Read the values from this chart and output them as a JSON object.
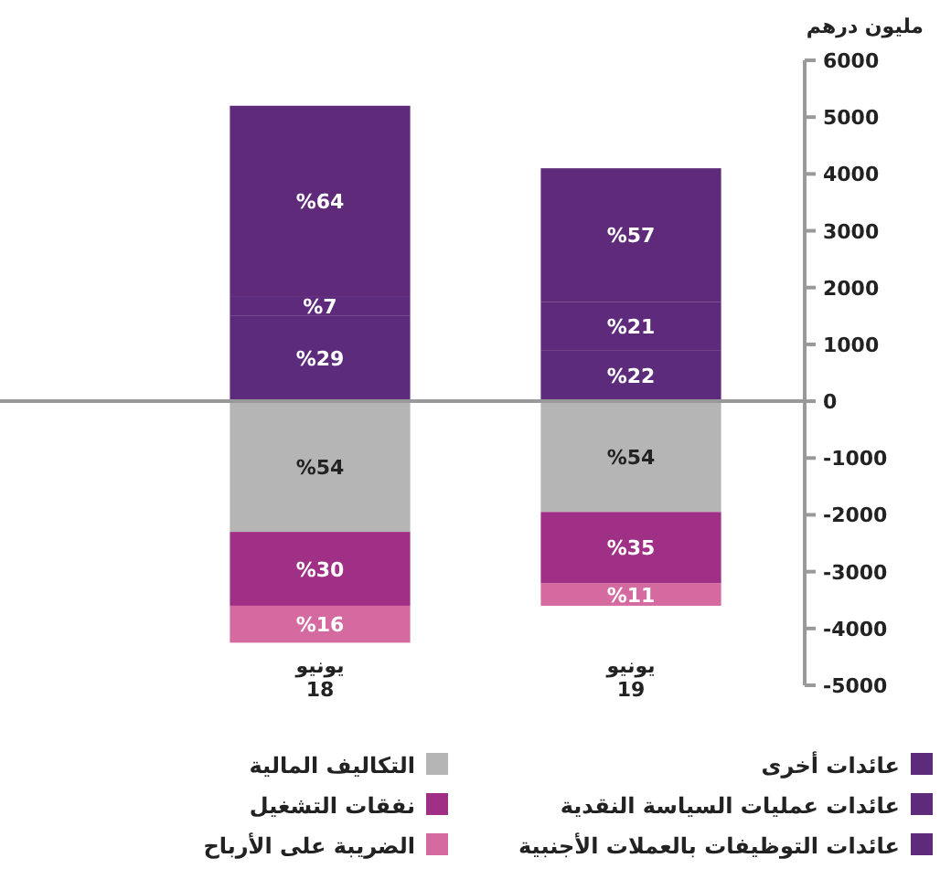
{
  "chart_data": {
    "type": "bar",
    "stacked": true,
    "ylabel": "مليون درهم",
    "categories": [
      "يونيو\n18",
      "يونيو\n19"
    ],
    "series": [
      {
        "name": "عائدات أخرى",
        "color": "#5d2b7b",
        "values": [
          1500,
          900
        ]
      },
      {
        "name": "عائدات عمليات السياسة النقدية",
        "color": "#5e2a7c",
        "values": [
          350,
          850
        ]
      },
      {
        "name": "عائدات التوظيفات بالعملات الأجنبية",
        "color": "#5f2a7a",
        "values": [
          3350,
          2350
        ]
      },
      {
        "name": "التكاليف المالية",
        "color": "#b5b5b5",
        "values": [
          -2300,
          -1950
        ]
      },
      {
        "name": "نفقات التشغيل",
        "color": "#a03085",
        "values": [
          -1300,
          -1250
        ]
      },
      {
        "name": "الضريبة على الأرباح",
        "color": "#d46aa0",
        "values": [
          -650,
          -400
        ]
      }
    ],
    "annotations": [
      "%29",
      "%7",
      "%64",
      "%54",
      "%30",
      "%16",
      "%22",
      "%21",
      "%57",
      "%54",
      "%35",
      "%11"
    ],
    "ylim": [
      -5000,
      6000
    ],
    "yticks": [
      -5000,
      -4000,
      -3000,
      -2000,
      -1000,
      0,
      1000,
      2000,
      3000,
      4000,
      5000,
      6000
    ],
    "ref_lines": [
      {
        "axis": "y",
        "value": 0,
        "color": "#999999"
      }
    ],
    "legend": "bottom",
    "grid": false
  }
}
